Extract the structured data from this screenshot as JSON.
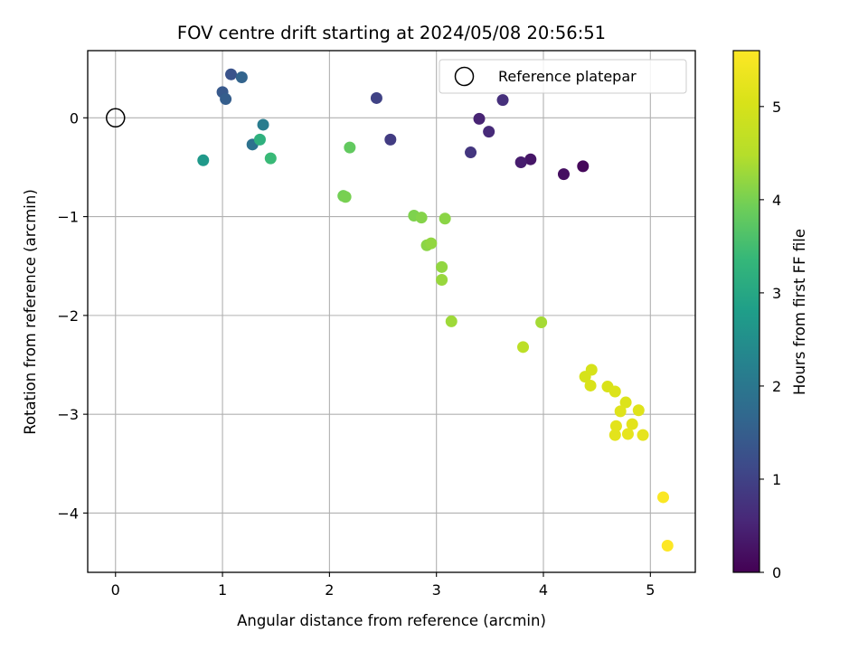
{
  "chart_data": {
    "type": "scatter",
    "title": "FOV centre drift starting at 2024/05/08 20:56:51",
    "xlabel": "Angular distance from reference (arcmin)",
    "ylabel": "Rotation from reference (arcmin)",
    "xlim": [
      -0.26,
      5.42
    ],
    "ylim": [
      -4.6,
      0.68
    ],
    "xticks": [
      0,
      1,
      2,
      3,
      4,
      5
    ],
    "yticks": [
      0,
      -1,
      -2,
      -3,
      -4
    ],
    "grid": true,
    "legend": {
      "placement": "top-right",
      "entries": [
        "Reference platepar"
      ]
    },
    "colormap": "viridis",
    "colorbar": {
      "label": "Hours from first FF file",
      "range": [
        0,
        5.6
      ],
      "ticks": [
        0,
        1,
        2,
        3,
        4,
        5
      ]
    },
    "reference": {
      "x": 0,
      "y": 0,
      "label": "Reference platepar"
    },
    "points": [
      {
        "x": 4.37,
        "y": -0.49,
        "h": 0.1
      },
      {
        "x": 4.19,
        "y": -0.57,
        "h": 0.2
      },
      {
        "x": 3.88,
        "y": -0.42,
        "h": 0.3
      },
      {
        "x": 3.79,
        "y": -0.45,
        "h": 0.4
      },
      {
        "x": 3.4,
        "y": -0.01,
        "h": 0.5
      },
      {
        "x": 3.49,
        "y": -0.14,
        "h": 0.6
      },
      {
        "x": 3.62,
        "y": 0.18,
        "h": 0.7
      },
      {
        "x": 3.32,
        "y": -0.35,
        "h": 0.8
      },
      {
        "x": 2.57,
        "y": -0.22,
        "h": 0.9
      },
      {
        "x": 2.44,
        "y": 0.2,
        "h": 1.0
      },
      {
        "x": 1.08,
        "y": 0.44,
        "h": 1.3
      },
      {
        "x": 1.0,
        "y": 0.26,
        "h": 1.4
      },
      {
        "x": 1.03,
        "y": 0.19,
        "h": 1.5
      },
      {
        "x": 1.18,
        "y": 0.41,
        "h": 1.6
      },
      {
        "x": 1.28,
        "y": -0.27,
        "h": 1.9
      },
      {
        "x": 1.38,
        "y": -0.07,
        "h": 2.1
      },
      {
        "x": 0.82,
        "y": -0.43,
        "h": 2.7
      },
      {
        "x": 1.35,
        "y": -0.22,
        "h": 3.2
      },
      {
        "x": 1.45,
        "y": -0.41,
        "h": 3.4
      },
      {
        "x": 2.19,
        "y": -0.3,
        "h": 3.8
      },
      {
        "x": 2.13,
        "y": -0.79,
        "h": 3.95
      },
      {
        "x": 2.15,
        "y": -0.8,
        "h": 4.0
      },
      {
        "x": 2.79,
        "y": -0.99,
        "h": 4.05
      },
      {
        "x": 2.86,
        "y": -1.01,
        "h": 4.1
      },
      {
        "x": 3.08,
        "y": -1.02,
        "h": 4.15
      },
      {
        "x": 2.91,
        "y": -1.29,
        "h": 4.15
      },
      {
        "x": 2.95,
        "y": -1.27,
        "h": 4.2
      },
      {
        "x": 3.05,
        "y": -1.51,
        "h": 4.2
      },
      {
        "x": 3.05,
        "y": -1.64,
        "h": 4.25
      },
      {
        "x": 3.14,
        "y": -2.06,
        "h": 4.3
      },
      {
        "x": 3.98,
        "y": -2.07,
        "h": 4.35
      },
      {
        "x": 3.81,
        "y": -2.32,
        "h": 4.6
      },
      {
        "x": 4.45,
        "y": -2.55,
        "h": 5.0
      },
      {
        "x": 4.39,
        "y": -2.62,
        "h": 5.0
      },
      {
        "x": 4.44,
        "y": -2.71,
        "h": 5.05
      },
      {
        "x": 4.6,
        "y": -2.72,
        "h": 5.05
      },
      {
        "x": 4.67,
        "y": -2.77,
        "h": 5.1
      },
      {
        "x": 4.77,
        "y": -2.88,
        "h": 5.1
      },
      {
        "x": 4.72,
        "y": -2.97,
        "h": 5.15
      },
      {
        "x": 4.89,
        "y": -2.96,
        "h": 5.15
      },
      {
        "x": 4.68,
        "y": -3.12,
        "h": 5.2
      },
      {
        "x": 4.83,
        "y": -3.1,
        "h": 5.2
      },
      {
        "x": 4.67,
        "y": -3.21,
        "h": 5.2
      },
      {
        "x": 4.79,
        "y": -3.2,
        "h": 5.25
      },
      {
        "x": 4.93,
        "y": -3.21,
        "h": 5.25
      },
      {
        "x": 5.12,
        "y": -3.84,
        "h": 5.55
      },
      {
        "x": 5.16,
        "y": -4.33,
        "h": 5.6
      }
    ]
  }
}
